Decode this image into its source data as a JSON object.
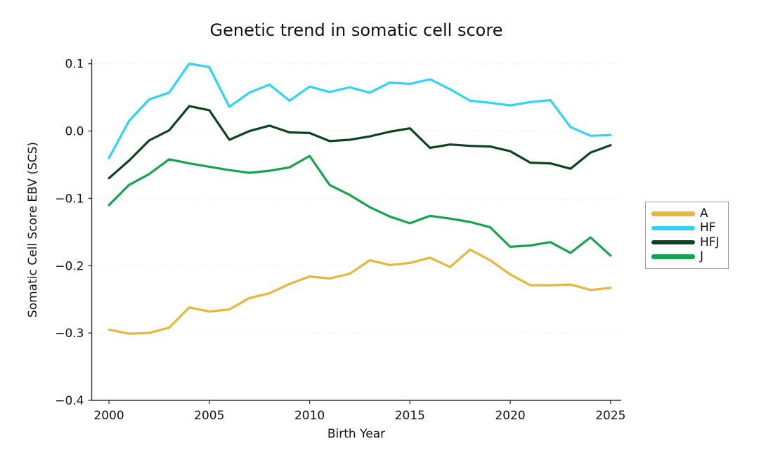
{
  "chart_data": {
    "type": "line",
    "title": "Genetic trend in somatic cell score",
    "xlabel": "Birth Year",
    "ylabel": "Somatic Cell Score EBV (SCS)",
    "grid": "horizontal-dotted",
    "legend_position": "outside-center-right",
    "xlim": [
      1999.14,
      2025.53
    ],
    "ylim": [
      -0.4,
      0.107
    ],
    "x_ticks": {
      "values": [
        2000,
        2005,
        2010,
        2015,
        2020,
        2025
      ],
      "labels": [
        "2000",
        "2005",
        "2010",
        "2015",
        "2020",
        "2025"
      ]
    },
    "y_ticks": {
      "values": [
        0.1,
        0.0,
        -0.1,
        -0.2,
        -0.3,
        -0.4
      ],
      "labels": [
        "0.1",
        "0.0",
        "−0.1",
        "−0.2",
        "−0.3",
        "−0.4"
      ]
    },
    "x": [
      2000,
      2001,
      2002,
      2003,
      2004,
      2005,
      2006,
      2007,
      2008,
      2009,
      2010,
      2011,
      2012,
      2013,
      2014,
      2015,
      2016,
      2017,
      2018,
      2019,
      2020,
      2021,
      2022,
      2023,
      2024,
      2025
    ],
    "series": [
      {
        "name": "A",
        "color": "#E6B63E",
        "values": [
          -0.295,
          -0.301,
          -0.3,
          -0.292,
          -0.262,
          -0.268,
          -0.265,
          -0.248,
          -0.241,
          -0.227,
          -0.216,
          -0.219,
          -0.212,
          -0.192,
          -0.199,
          -0.196,
          -0.188,
          -0.202,
          -0.176,
          -0.192,
          -0.213,
          -0.229,
          -0.229,
          -0.228,
          -0.236,
          -0.233
        ]
      },
      {
        "name": "HF",
        "color": "#2ED4F5",
        "values": [
          -0.04,
          0.015,
          0.047,
          0.057,
          0.1,
          0.095,
          0.036,
          0.057,
          0.069,
          0.045,
          0.066,
          0.058,
          0.065,
          0.057,
          0.072,
          0.07,
          0.077,
          0.062,
          0.045,
          0.042,
          0.038,
          0.043,
          0.046,
          0.006,
          -0.007,
          -0.006
        ]
      },
      {
        "name": "HFJ",
        "color": "#0E421F",
        "values": [
          -0.07,
          -0.044,
          -0.014,
          0.001,
          0.037,
          0.031,
          -0.013,
          0.0,
          0.008,
          -0.002,
          -0.003,
          -0.015,
          -0.013,
          -0.008,
          -0.001,
          0.004,
          -0.025,
          -0.02,
          -0.022,
          -0.023,
          -0.03,
          -0.047,
          -0.048,
          -0.056,
          -0.032,
          -0.021
        ]
      },
      {
        "name": "J",
        "color": "#17A34E",
        "values": [
          -0.11,
          -0.08,
          -0.064,
          -0.042,
          -0.048,
          -0.053,
          -0.058,
          -0.062,
          -0.059,
          -0.054,
          -0.037,
          -0.08,
          -0.095,
          -0.113,
          -0.127,
          -0.137,
          -0.126,
          -0.13,
          -0.135,
          -0.143,
          -0.172,
          -0.17,
          -0.165,
          -0.181,
          -0.158,
          -0.185
        ]
      }
    ]
  }
}
